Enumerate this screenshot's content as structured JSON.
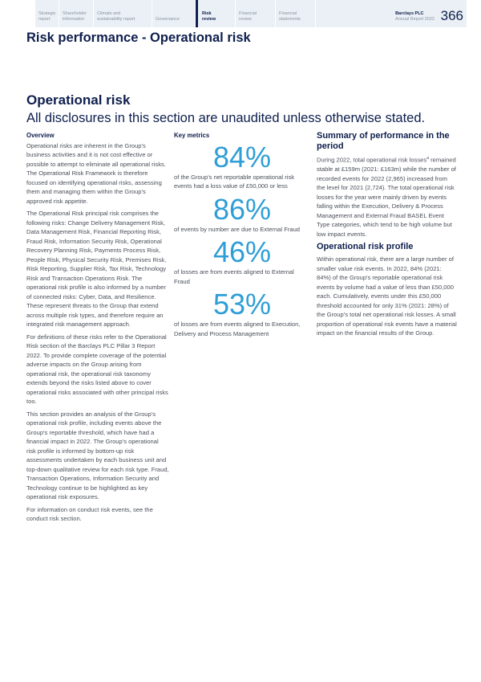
{
  "nav": {
    "items": [
      "Strategic report",
      "Shareholder information",
      "Climate and sustainability report",
      "Governance",
      "Risk review",
      "Financial review",
      "Financial statements"
    ],
    "active": 4,
    "brand": "Barclays PLC",
    "brand_sub": "Annual Report 2022",
    "page": "366"
  },
  "page_title": "Risk performance - Operational risk",
  "section_title": "Operational risk",
  "subtitle": "All disclosures in this section are unaudited unless otherwise stated.",
  "overview": {
    "label": "Overview",
    "paragraphs": [
      "Operational risks are inherent in the Group's business activities and it is not cost effective or possible to attempt to eliminate all operational risks. The Operational Risk Framework is therefore focused on identifying operational risks, assessing them and managing them within the Group's approved risk appetite.",
      "The Operational Risk principal risk comprises the following risks: Change Delivery Management Risk, Data Management Risk, Financial Reporting Risk, Fraud Risk, Information Security Risk, Operational Recovery Planning Risk, Payments Process Risk, People Risk, Physical Security Risk, Premises Risk, Risk Reporting, Supplier Risk, Tax Risk, Technology Risk and Transaction Operations Risk. The operational risk profile is also informed by a number of connected risks: Cyber, Data, and Resilience. These represent threats to the Group that extend across multiple risk types, and therefore require an integrated risk management approach.",
      "For definitions of these risks refer to the Operational Risk section of the Barclays PLC Pillar 3 Report 2022. To provide complete coverage of the potential adverse impacts on the Group arising from operational risk, the operational risk taxonomy extends beyond the risks listed above to cover operational risks associated with other principal risks too.",
      "This section provides an analysis of the Group's operational risk profile, including events above the Group's reportable threshold, which have had a financial impact in 2022. The Group's operational risk profile is informed by bottom-up risk assessments undertaken by each business unit and top-down qualitative review for each risk type. Fraud, Transaction Operations, Information Security and Technology continue to be highlighted as key operational risk exposures.",
      "For information on conduct risk events, see the conduct risk section."
    ]
  },
  "key_metrics": {
    "label": "Key metrics",
    "accent": "#2f9ed6",
    "items": [
      {
        "value": "84%",
        "text": "of the Group's net reportable operational risk events had a loss value of £50,000 or less"
      },
      {
        "value": "86%",
        "text": "of events by number are due to External Fraud"
      },
      {
        "value": "46%",
        "text": "of losses are from events aligned to External Fraud"
      },
      {
        "value": "53%",
        "text": "of losses are from events aligned to Execution, Delivery and Process Management"
      }
    ]
  },
  "summary": {
    "heading": "Summary of performance in the period",
    "text_a": "During 2022, total operational risk losses",
    "footnote": "a",
    "text_b": " remained stable at £159m (2021: £163m) while the number of recorded events for 2022 (2,965) increased from the level for 2021 (2,724). The total operational risk losses for the year were mainly driven by events falling within the Execution, Delivery & Process Management and External Fraud BASEL Event Type categories, which tend to be high volume but low impact events."
  },
  "profile": {
    "heading": "Operational risk profile",
    "text": "Within operational risk, there are a large number of smaller value risk events. In 2022, 84% (2021: 84%) of the Group's reportable operational risk events by volume had a value of less than £50,000 each. Cumulatively, events under this £50,000 threshold accounted for only 31% (2021: 28%) of the Group's total net operational risk losses. A small proportion of operational risk events have a material impact on the financial results of the Group."
  }
}
